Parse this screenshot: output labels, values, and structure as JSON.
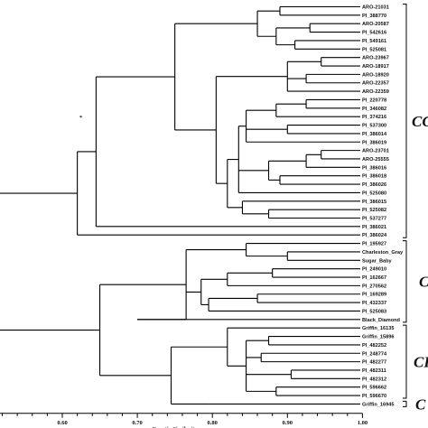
{
  "leaves": [
    "ARO-21031",
    "PI_388770",
    "ARO-20587",
    "PI_542616",
    "PI_549161",
    "PI_525081",
    "ARO-23967",
    "ARO-18917",
    "ARO-18920",
    "ARO-22357",
    "ARO-22359",
    "PI_220778",
    "PI_346082",
    "PI_374216",
    "PI_537300",
    "PI_386014",
    "PI_386019",
    "ARO-23701",
    "ARO-25555",
    "PI_386016",
    "PI_386018",
    "PI_386026",
    "PI_525080",
    "PI_386015",
    "PI_525082",
    "PI_537277",
    "PI_386021",
    "PI_386024",
    "PI_195927",
    "Charleston_Gray",
    "Sugar_Baby",
    "PI_249010",
    "PI_162667",
    "PI_270562",
    "PI_169289",
    "PI_432337",
    "PI_525083",
    "Black_Diamond",
    "Griffin_16135",
    "Griffin_15896",
    "PI_482252",
    "PI_248774",
    "PI_482277",
    "PI_482311",
    "PI_482312",
    "PI_596662",
    "PI_596670",
    "Griffin_16945"
  ],
  "groups": [
    {
      "label": "CC"
    },
    {
      "label": "C"
    },
    {
      "label": "CL"
    },
    {
      "label": "C"
    }
  ],
  "axis": {
    "title": "Genetic Similarity",
    "ticks": [
      "0.60",
      "0.70",
      "0.80",
      "0.90",
      "1.00"
    ]
  },
  "stray_mark": "*"
}
